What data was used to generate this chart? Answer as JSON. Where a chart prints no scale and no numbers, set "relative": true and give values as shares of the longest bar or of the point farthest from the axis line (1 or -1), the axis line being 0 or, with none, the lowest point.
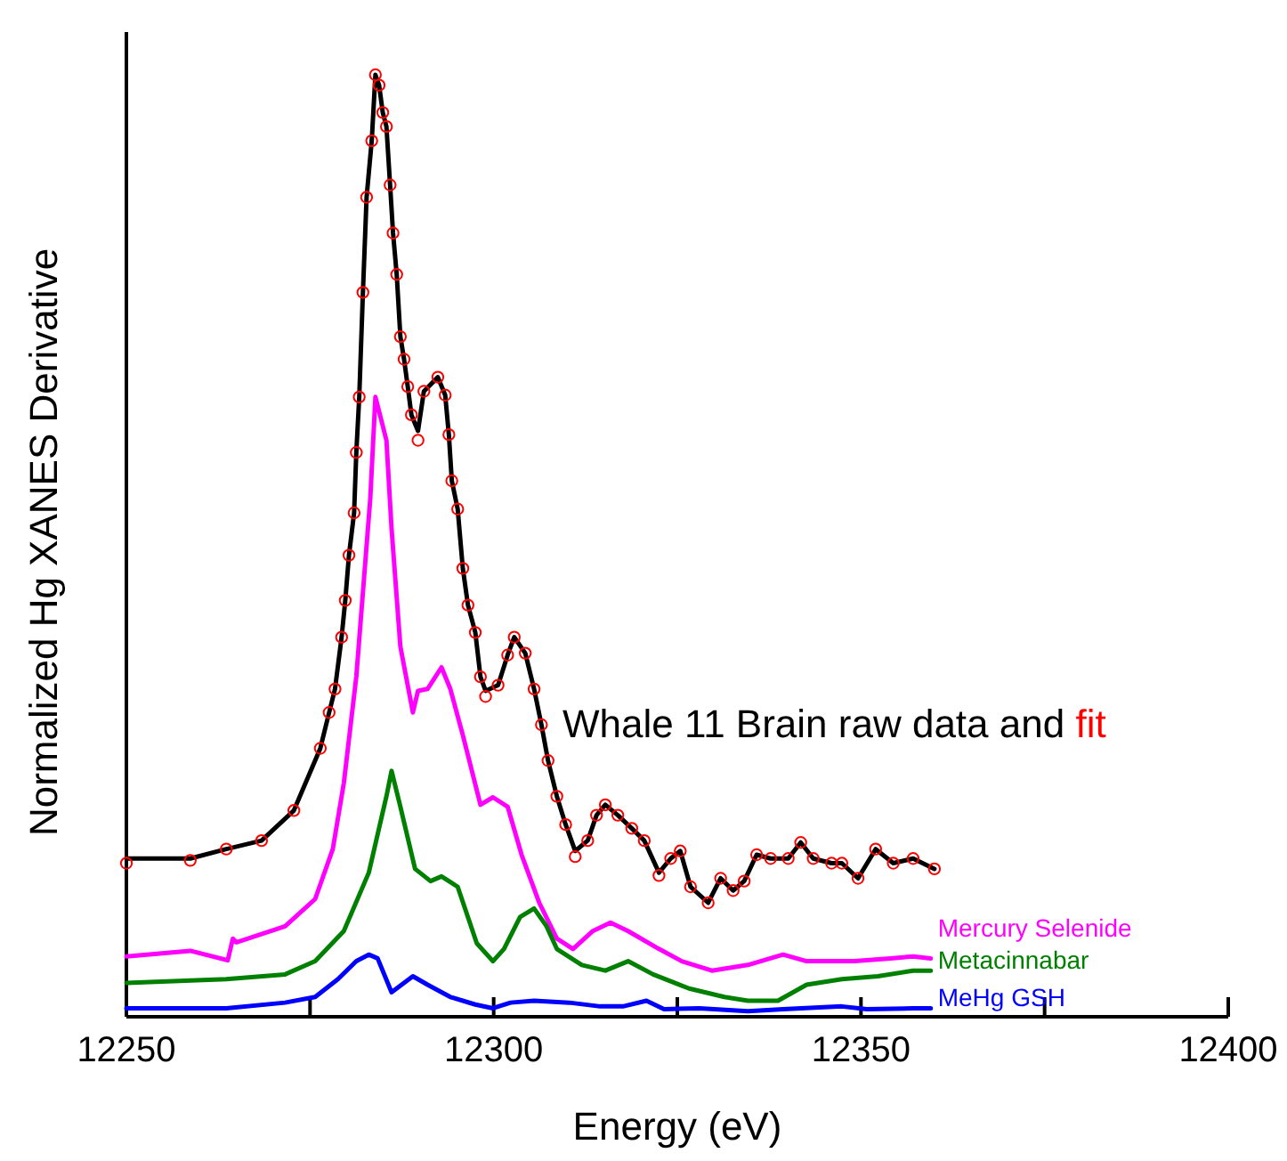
{
  "chart_data": {
    "type": "line",
    "xlabel": "Energy (eV)",
    "ylabel": "Normalized Hg XANES Derivative",
    "relative": true,
    "xlim": [
      12250,
      12400
    ],
    "xticks": [
      12250,
      {
        "value": 12275,
        "label": null
      },
      12300,
      {
        "value": 12325,
        "label": null
      },
      12350,
      {
        "value": 12375,
        "label": null
      },
      12400
    ],
    "grid": false,
    "line_style": "solid",
    "series": [
      {
        "name": "Whale 11 Brain raw data and",
        "color": "#000000",
        "marker": "none",
        "x": [
          12250.0,
          12258.7,
          12263.6,
          12268.4,
          12272.8,
          12276.4,
          12277.6,
          12278.4,
          12279.3,
          12279.8,
          12280.3,
          12281.0,
          12281.3,
          12281.7,
          12282.2,
          12282.7,
          12283.4,
          12283.9,
          12284.4,
          12284.9,
          12285.4,
          12285.9,
          12286.3,
          12286.8,
          12287.3,
          12287.8,
          12288.3,
          12288.8,
          12289.7,
          12290.5,
          12292.4,
          12293.4,
          12293.9,
          12294.3,
          12295.1,
          12295.8,
          12296.5,
          12297.5,
          12298.2,
          12298.9,
          12300.6,
          12301.9,
          12302.8,
          12304.3,
          12305.5,
          12306.5,
          12307.4,
          12308.6,
          12309.8,
          12311.1,
          12312.8,
          12314.0,
          12315.2,
          12316.9,
          12318.8,
          12320.5,
          12322.5,
          12324.1,
          12325.4,
          12326.8,
          12329.2,
          12330.9,
          12332.6,
          12334.1,
          12335.8,
          12337.7,
          12340.1,
          12341.8,
          12343.5,
          12346.0,
          12347.4,
          12349.6,
          12352.0,
          12354.4,
          12357.1,
          12360.0
        ],
        "values": [
          0.168,
          0.168,
          0.178,
          0.187,
          0.219,
          0.285,
          0.323,
          0.348,
          0.403,
          0.442,
          0.49,
          0.535,
          0.599,
          0.658,
          0.769,
          0.87,
          0.93,
          1.0,
          0.989,
          0.96,
          0.945,
          0.883,
          0.832,
          0.788,
          0.722,
          0.698,
          0.669,
          0.639,
          0.622,
          0.664,
          0.679,
          0.66,
          0.618,
          0.569,
          0.539,
          0.476,
          0.437,
          0.408,
          0.361,
          0.346,
          0.352,
          0.384,
          0.403,
          0.386,
          0.348,
          0.31,
          0.272,
          0.234,
          0.204,
          0.176,
          0.187,
          0.214,
          0.225,
          0.214,
          0.2,
          0.187,
          0.153,
          0.168,
          0.176,
          0.138,
          0.121,
          0.147,
          0.134,
          0.144,
          0.172,
          0.168,
          0.168,
          0.185,
          0.168,
          0.163,
          0.163,
          0.147,
          0.178,
          0.163,
          0.168,
          0.157
        ]
      },
      {
        "name": "fit",
        "color": "#ff0000",
        "type": "scatter",
        "marker": "circle",
        "x": [
          12250.0,
          12258.7,
          12263.6,
          12268.4,
          12272.8,
          12276.4,
          12277.6,
          12278.4,
          12279.3,
          12279.8,
          12280.3,
          12281.0,
          12281.3,
          12281.7,
          12282.2,
          12282.7,
          12283.4,
          12283.9,
          12284.4,
          12284.9,
          12285.4,
          12285.9,
          12286.3,
          12286.8,
          12287.3,
          12287.8,
          12288.3,
          12288.8,
          12289.7,
          12290.5,
          12292.4,
          12293.4,
          12293.9,
          12294.3,
          12295.1,
          12295.8,
          12296.5,
          12297.5,
          12298.2,
          12298.9,
          12300.6,
          12301.9,
          12302.8,
          12304.3,
          12305.5,
          12306.5,
          12307.4,
          12308.6,
          12309.8,
          12311.1,
          12312.8,
          12314.0,
          12315.2,
          12316.9,
          12318.8,
          12320.5,
          12322.5,
          12324.1,
          12325.4,
          12326.8,
          12329.2,
          12330.9,
          12332.6,
          12334.1,
          12335.8,
          12337.7,
          12340.1,
          12341.8,
          12343.5,
          12346.0,
          12347.4,
          12349.6,
          12352.0,
          12354.4,
          12357.1,
          12360.0
        ],
        "values": [
          0.163,
          0.166,
          0.178,
          0.187,
          0.219,
          0.285,
          0.323,
          0.348,
          0.403,
          0.442,
          0.49,
          0.535,
          0.599,
          0.658,
          0.769,
          0.87,
          0.93,
          1.0,
          0.989,
          0.96,
          0.945,
          0.883,
          0.832,
          0.788,
          0.722,
          0.698,
          0.669,
          0.639,
          0.612,
          0.664,
          0.679,
          0.66,
          0.618,
          0.569,
          0.539,
          0.476,
          0.437,
          0.408,
          0.361,
          0.34,
          0.352,
          0.384,
          0.403,
          0.386,
          0.348,
          0.31,
          0.272,
          0.234,
          0.204,
          0.17,
          0.187,
          0.214,
          0.225,
          0.214,
          0.2,
          0.187,
          0.15,
          0.168,
          0.176,
          0.138,
          0.121,
          0.147,
          0.134,
          0.144,
          0.172,
          0.168,
          0.168,
          0.185,
          0.168,
          0.163,
          0.163,
          0.147,
          0.178,
          0.163,
          0.168,
          0.157
        ]
      },
      {
        "name": "Mercury Selenide",
        "color": "#ff00ff",
        "marker": "none",
        "x": [
          12250.0,
          12258.7,
          12263.8,
          12264.5,
          12265.0,
          12271.6,
          12275.7,
          12278.1,
          12279.6,
          12281.3,
          12283.2,
          12283.9,
          12285.4,
          12286.1,
          12287.3,
          12289.0,
          12289.7,
          12291.0,
          12292.9,
          12294.1,
          12295.8,
          12298.2,
          12299.9,
          12301.9,
          12303.8,
          12306.2,
          12308.6,
          12310.8,
          12313.5,
          12315.9,
          12318.3,
          12322.5,
          12325.6,
          12329.7,
          12334.6,
          12339.4,
          12342.6,
          12349.1,
          12354.0,
          12357.1,
          12359.5
        ],
        "values": [
          0.064,
          0.07,
          0.06,
          0.083,
          0.079,
          0.096,
          0.125,
          0.178,
          0.248,
          0.361,
          0.55,
          0.658,
          0.612,
          0.518,
          0.393,
          0.323,
          0.346,
          0.348,
          0.371,
          0.348,
          0.299,
          0.225,
          0.233,
          0.223,
          0.172,
          0.121,
          0.083,
          0.072,
          0.091,
          0.1,
          0.091,
          0.072,
          0.059,
          0.049,
          0.055,
          0.066,
          0.059,
          0.059,
          0.062,
          0.064,
          0.062
        ]
      },
      {
        "name": "Metacinnabar",
        "color": "#008000",
        "marker": "none",
        "x": [
          12250.0,
          12263.6,
          12271.6,
          12275.7,
          12279.6,
          12283.0,
          12285.4,
          12286.1,
          12287.3,
          12289.3,
          12291.4,
          12292.9,
          12295.1,
          12297.7,
          12299.9,
          12301.4,
          12303.6,
          12305.5,
          12307.2,
          12308.6,
          12312.0,
          12315.2,
          12318.3,
          12321.7,
          12326.6,
          12331.4,
          12334.6,
          12338.7,
          12342.6,
          12347.4,
          12352.3,
          12357.1,
          12359.5
        ],
        "values": [
          0.036,
          0.04,
          0.045,
          0.059,
          0.091,
          0.153,
          0.234,
          0.261,
          0.223,
          0.157,
          0.144,
          0.149,
          0.138,
          0.078,
          0.059,
          0.072,
          0.106,
          0.115,
          0.096,
          0.072,
          0.055,
          0.049,
          0.059,
          0.045,
          0.03,
          0.021,
          0.017,
          0.017,
          0.034,
          0.04,
          0.043,
          0.049,
          0.049
        ]
      },
      {
        "name": "MeHg GSH",
        "color": "#0000ff",
        "marker": "none",
        "x": [
          12250.0,
          12263.6,
          12271.6,
          12275.7,
          12278.8,
          12281.3,
          12283.0,
          12284.2,
          12286.1,
          12289.0,
          12291.0,
          12294.1,
          12297.5,
          12299.9,
          12302.3,
          12305.5,
          12310.3,
          12314.5,
          12317.6,
          12320.8,
          12323.2,
          12328.0,
          12334.6,
          12339.4,
          12347.4,
          12350.8,
          12357.1,
          12359.5
        ],
        "values": [
          0.009,
          0.009,
          0.015,
          0.021,
          0.04,
          0.059,
          0.066,
          0.062,
          0.026,
          0.043,
          0.034,
          0.021,
          0.013,
          0.009,
          0.015,
          0.017,
          0.015,
          0.011,
          0.011,
          0.017,
          0.008,
          0.009,
          0.006,
          0.008,
          0.011,
          0.008,
          0.009,
          0.009
        ]
      }
    ]
  }
}
